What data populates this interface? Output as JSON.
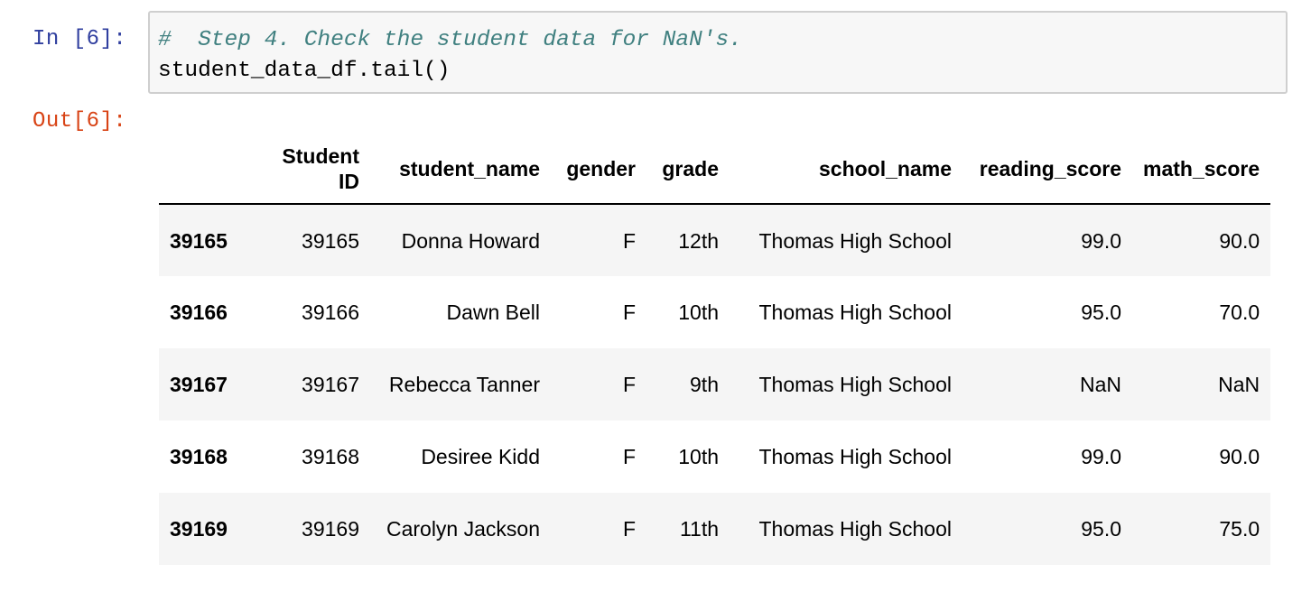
{
  "cell": {
    "in_prompt": "In [6]:",
    "out_prompt": "Out[6]:",
    "code_comment": "#  Step 4. Check the student data for NaN's.",
    "code_line": "student_data_df.tail()"
  },
  "table": {
    "columns": [
      "Student\nID",
      "student_name",
      "gender",
      "grade",
      "school_name",
      "reading_score",
      "math_score"
    ],
    "rows": [
      {
        "index": "39165",
        "student_id": "39165",
        "student_name": "Donna Howard",
        "gender": "F",
        "grade": "12th",
        "school_name": "Thomas High School",
        "reading_score": "99.0",
        "math_score": "90.0"
      },
      {
        "index": "39166",
        "student_id": "39166",
        "student_name": "Dawn Bell",
        "gender": "F",
        "grade": "10th",
        "school_name": "Thomas High School",
        "reading_score": "95.0",
        "math_score": "70.0"
      },
      {
        "index": "39167",
        "student_id": "39167",
        "student_name": "Rebecca Tanner",
        "gender": "F",
        "grade": "9th",
        "school_name": "Thomas High School",
        "reading_score": "NaN",
        "math_score": "NaN"
      },
      {
        "index": "39168",
        "student_id": "39168",
        "student_name": "Desiree Kidd",
        "gender": "F",
        "grade": "10th",
        "school_name": "Thomas High School",
        "reading_score": "99.0",
        "math_score": "90.0"
      },
      {
        "index": "39169",
        "student_id": "39169",
        "student_name": "Carolyn Jackson",
        "gender": "F",
        "grade": "11th",
        "school_name": "Thomas High School",
        "reading_score": "95.0",
        "math_score": "75.0"
      }
    ]
  }
}
